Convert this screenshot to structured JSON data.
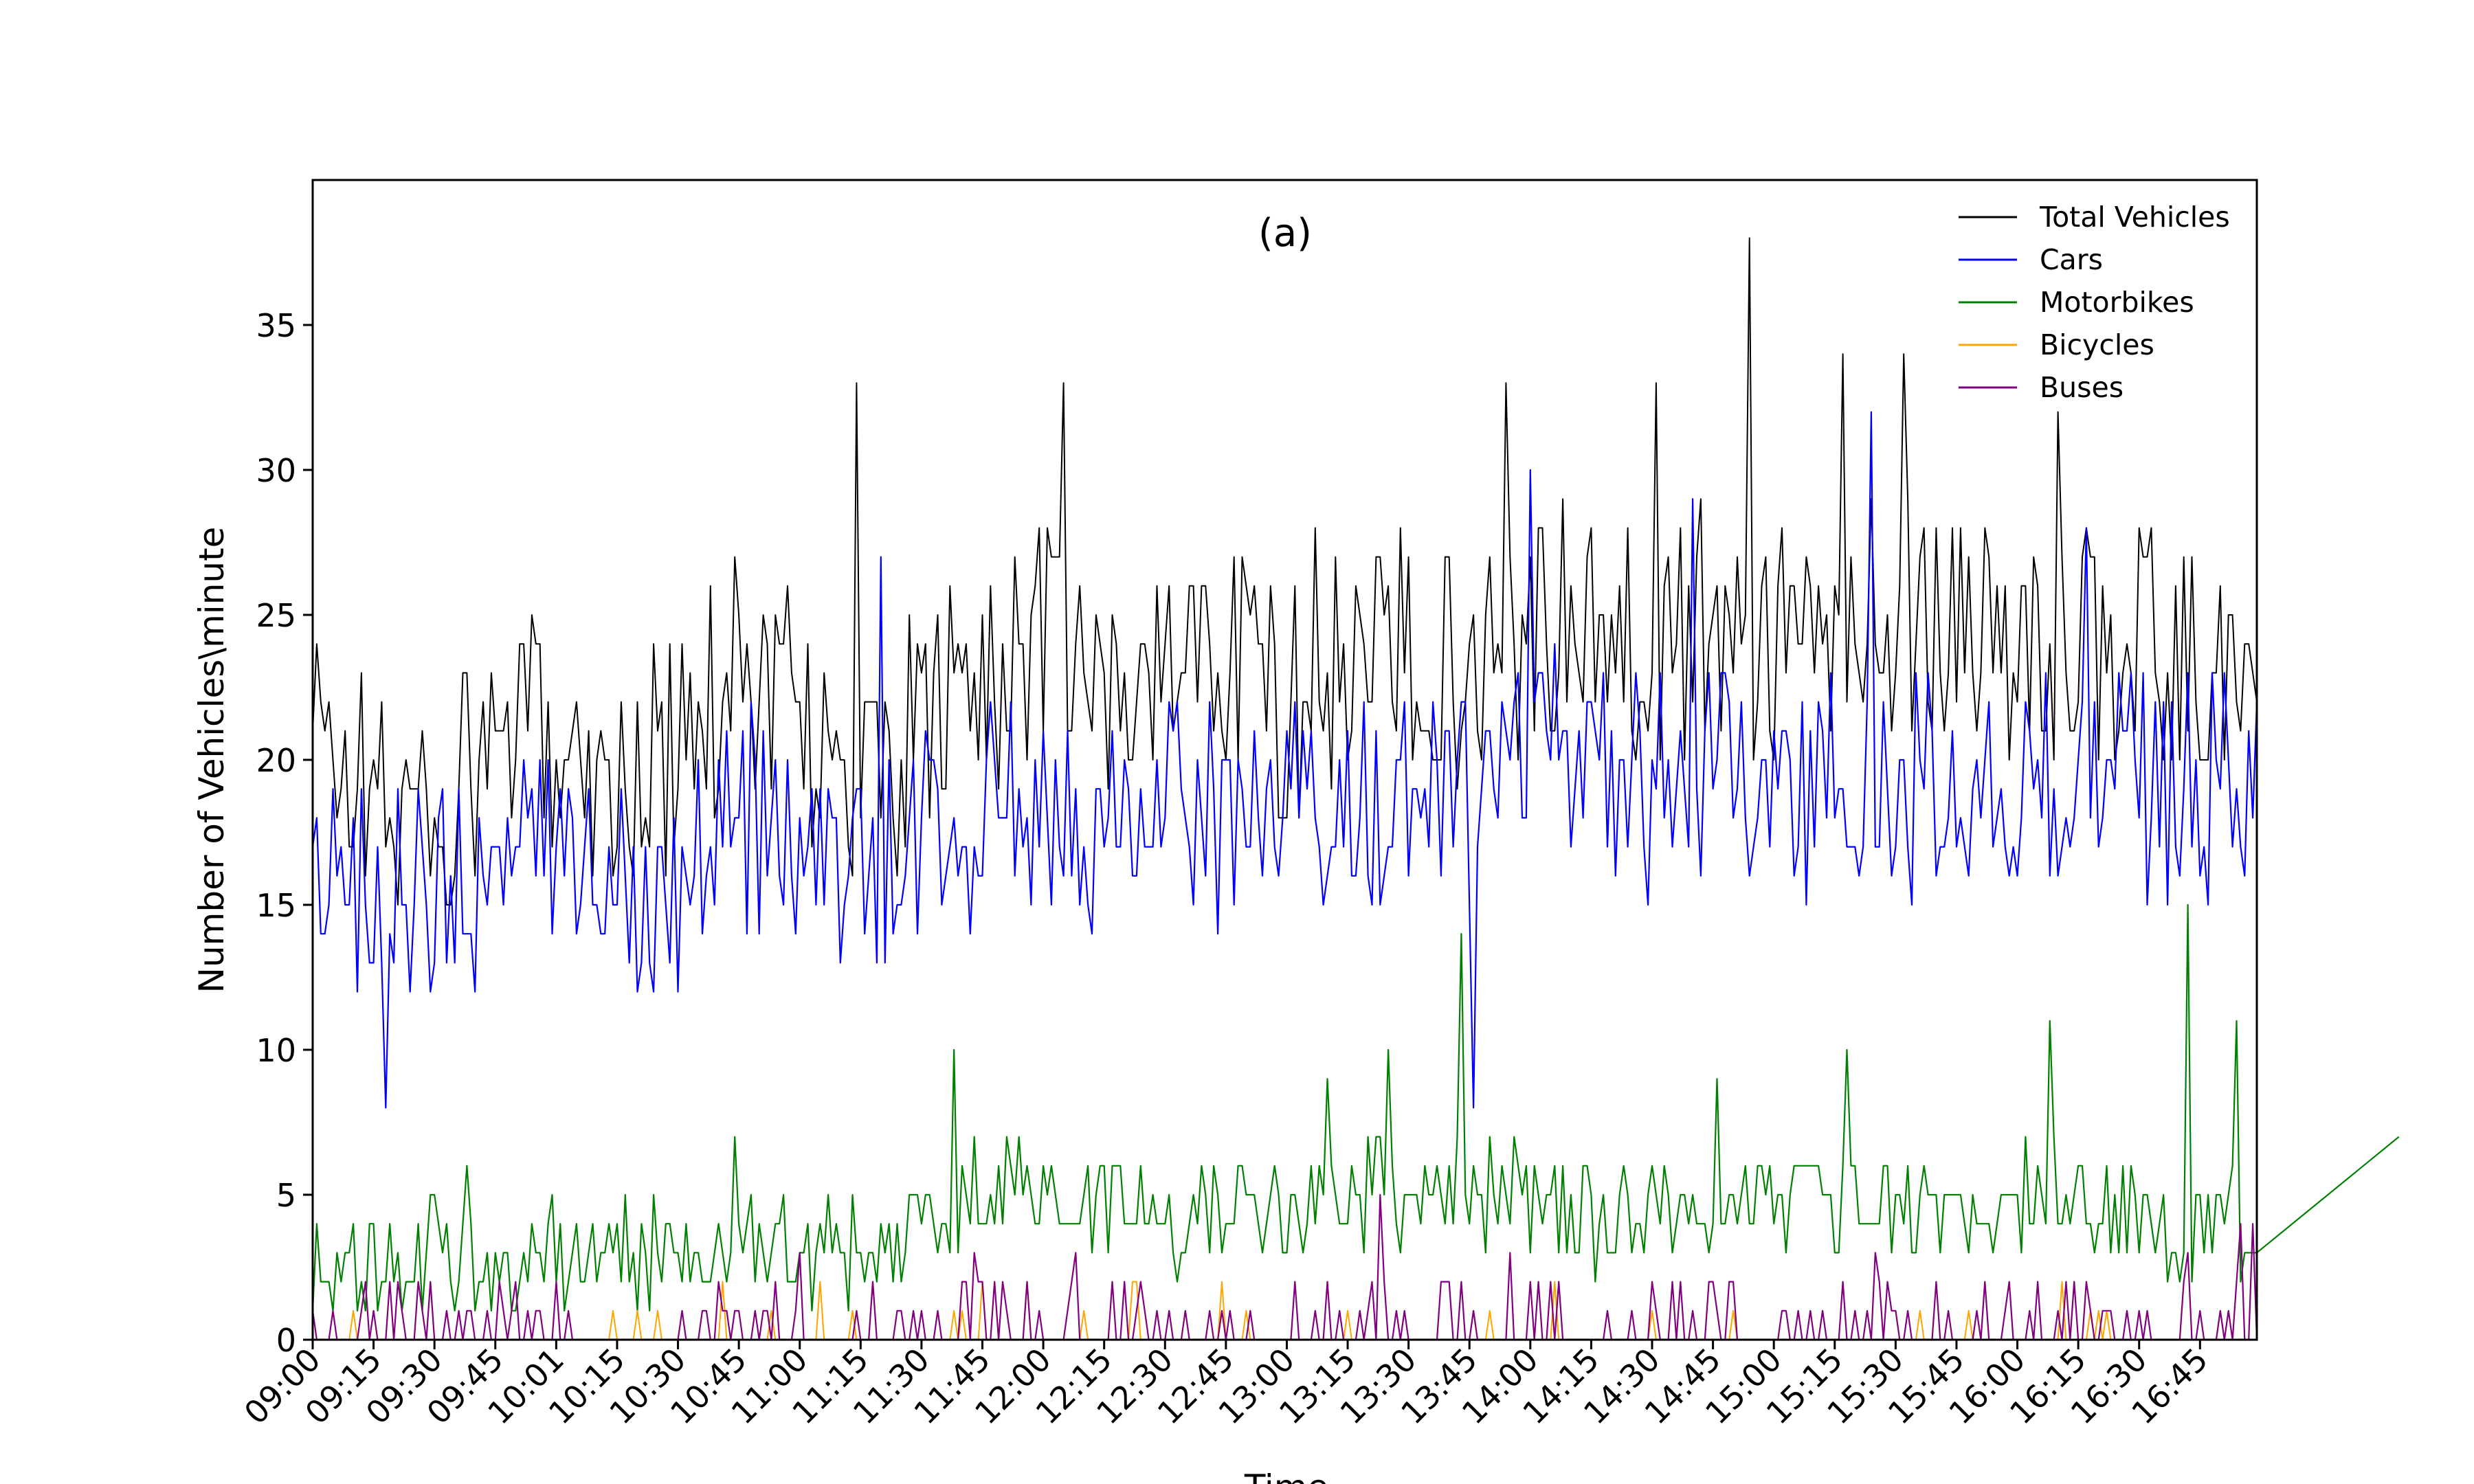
{
  "chart_data": {
    "type": "line",
    "title": "(a)",
    "xlabel": "Time",
    "ylabel": "Number of Vehicles\\minute",
    "ylim": [
      0,
      40
    ],
    "yticks": [
      0,
      5,
      10,
      15,
      20,
      25,
      30,
      35
    ],
    "x_tick_labels": [
      "09:00",
      "09:15",
      "09:30",
      "09:45",
      "10:01",
      "10:15",
      "10:30",
      "10:45",
      "11:00",
      "11:15",
      "11:30",
      "11:45",
      "12:00",
      "12:15",
      "12:30",
      "12:45",
      "13:00",
      "13:15",
      "13:30",
      "13:45",
      "14:00",
      "14:15",
      "14:30",
      "14:45",
      "15:00",
      "15:15",
      "15:30",
      "15:45",
      "16:00",
      "16:15",
      "16:30",
      "16:45"
    ],
    "legend_position": "top-right",
    "grid": false,
    "sampling": "one reading per minute, 09:00 to 16:59",
    "series": [
      {
        "name": "Total Vehicles",
        "color": "#000000",
        "anchors": [
          [
            0,
            21
          ],
          [
            15,
            19
          ],
          [
            30,
            18
          ],
          [
            45,
            20
          ],
          [
            60,
            21
          ],
          [
            75,
            19
          ],
          [
            90,
            20
          ],
          [
            105,
            23
          ],
          [
            120,
            22
          ],
          [
            135,
            18
          ],
          [
            150,
            21
          ],
          [
            165,
            23
          ],
          [
            180,
            24
          ],
          [
            195,
            22
          ],
          [
            210,
            23
          ],
          [
            225,
            24
          ],
          [
            240,
            22
          ],
          [
            255,
            23
          ],
          [
            270,
            24
          ],
          [
            285,
            23
          ],
          [
            300,
            25
          ],
          [
            315,
            24
          ],
          [
            330,
            24
          ],
          [
            345,
            25
          ],
          [
            360,
            24
          ],
          [
            375,
            24
          ],
          [
            390,
            25
          ],
          [
            405,
            25
          ],
          [
            420,
            23
          ],
          [
            435,
            24
          ],
          [
            450,
            24
          ],
          [
            465,
            23
          ]
        ],
        "peaks": [
          [
            55,
            24
          ],
          [
            104,
            27
          ],
          [
            134,
            33
          ],
          [
            185,
            33
          ],
          [
            217,
            26
          ],
          [
            247,
            28
          ],
          [
            294,
            33
          ],
          [
            331,
            33
          ],
          [
            354,
            38
          ],
          [
            377,
            34
          ],
          [
            392,
            34
          ],
          [
            430,
            32
          ]
        ]
      },
      {
        "name": "Cars",
        "color": "#0000ff",
        "anchors": [
          [
            0,
            16
          ],
          [
            15,
            16
          ],
          [
            30,
            15
          ],
          [
            45,
            16
          ],
          [
            60,
            17
          ],
          [
            75,
            16
          ],
          [
            90,
            16
          ],
          [
            105,
            18
          ],
          [
            120,
            17
          ],
          [
            135,
            16
          ],
          [
            150,
            17
          ],
          [
            165,
            18
          ],
          [
            180,
            19
          ],
          [
            195,
            18
          ],
          [
            210,
            18
          ],
          [
            225,
            18
          ],
          [
            240,
            18
          ],
          [
            255,
            19
          ],
          [
            270,
            18
          ],
          [
            285,
            19
          ],
          [
            300,
            20
          ],
          [
            315,
            20
          ],
          [
            330,
            19
          ],
          [
            345,
            20
          ],
          [
            360,
            19
          ],
          [
            375,
            19
          ],
          [
            390,
            19
          ],
          [
            405,
            19
          ],
          [
            420,
            19
          ],
          [
            435,
            19
          ],
          [
            450,
            19
          ],
          [
            465,
            19
          ]
        ],
        "peaks": [
          [
            18,
            8
          ],
          [
            140,
            27
          ],
          [
            286,
            8
          ],
          [
            300,
            30
          ],
          [
            340,
            29
          ],
          [
            384,
            32
          ],
          [
            437,
            28
          ]
        ]
      },
      {
        "name": "Motorbikes",
        "color": "#008000",
        "anchors": [
          [
            0,
            2
          ],
          [
            15,
            2
          ],
          [
            30,
            3
          ],
          [
            45,
            2
          ],
          [
            60,
            3
          ],
          [
            75,
            3
          ],
          [
            90,
            3
          ],
          [
            105,
            3
          ],
          [
            120,
            3
          ],
          [
            135,
            3
          ],
          [
            150,
            4
          ],
          [
            165,
            5
          ],
          [
            180,
            5
          ],
          [
            195,
            5
          ],
          [
            210,
            4
          ],
          [
            225,
            4
          ],
          [
            240,
            4
          ],
          [
            255,
            5
          ],
          [
            270,
            5
          ],
          [
            285,
            5
          ],
          [
            300,
            5
          ],
          [
            315,
            4
          ],
          [
            330,
            4
          ],
          [
            345,
            4
          ],
          [
            360,
            5
          ],
          [
            375,
            5
          ],
          [
            390,
            4
          ],
          [
            405,
            4
          ],
          [
            420,
            5
          ],
          [
            435,
            5
          ],
          [
            450,
            4
          ],
          [
            465,
            4
          ]
        ],
        "peaks": [
          [
            38,
            6
          ],
          [
            104,
            7
          ],
          [
            158,
            10
          ],
          [
            250,
            9
          ],
          [
            265,
            10
          ],
          [
            283,
            14
          ],
          [
            346,
            9
          ],
          [
            378,
            10
          ],
          [
            428,
            11
          ],
          [
            462,
            15
          ],
          [
            465,
            5
          ],
          [
            474,
            11
          ],
          [
            514,
            7
          ]
        ]
      },
      {
        "name": "Bicycles",
        "color": "#ffa500",
        "anchors": [
          [
            0,
            0
          ],
          [
            480,
            0
          ]
        ],
        "peaks": [
          [
            80,
            1
          ],
          [
            125,
            2
          ],
          [
            160,
            1
          ],
          [
            176,
            2
          ],
          [
            190,
            1
          ],
          [
            203,
            2
          ],
          [
            230,
            1
          ],
          [
            290,
            1
          ],
          [
            330,
            1
          ],
          [
            350,
            1
          ],
          [
            408,
            1
          ],
          [
            440,
            1
          ],
          [
            470,
            1
          ]
        ]
      },
      {
        "name": "Buses",
        "color": "#800080",
        "anchors": [
          [
            0,
            0
          ],
          [
            480,
            0
          ]
        ],
        "peaks": [
          [
            13,
            2
          ],
          [
            60,
            2
          ],
          [
            120,
            3
          ],
          [
            163,
            3
          ],
          [
            188,
            3
          ],
          [
            263,
            5
          ],
          [
            295,
            3
          ],
          [
            335,
            2
          ],
          [
            385,
            3
          ],
          [
            462,
            3
          ],
          [
            475,
            4
          ],
          [
            478,
            4
          ]
        ]
      }
    ]
  }
}
